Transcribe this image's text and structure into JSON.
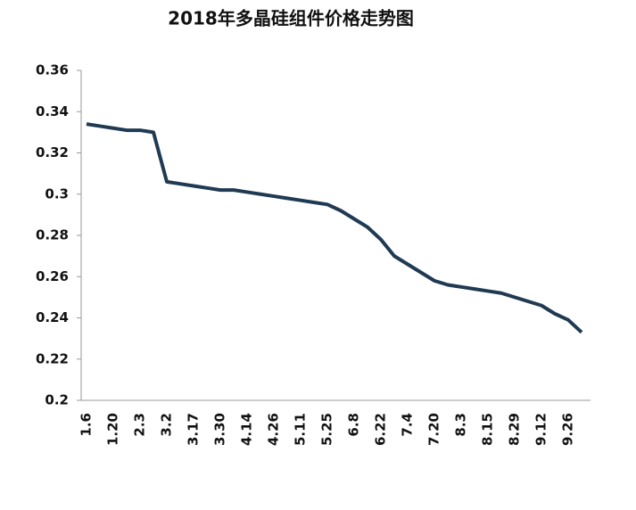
{
  "chart_data": {
    "type": "line",
    "title": "2018年多晶硅组件价格走势图",
    "categories": [
      "1.6",
      null,
      "1.20",
      null,
      "2.3",
      null,
      "3.2",
      null,
      "3.17",
      null,
      "3.30",
      null,
      "4.14",
      null,
      "4.26",
      null,
      "5.11",
      null,
      "5.25",
      null,
      "6.8",
      null,
      "6.22",
      null,
      "7.4",
      null,
      "7.20",
      null,
      "8.3",
      null,
      "8.15",
      null,
      "8.29",
      null,
      "9.12",
      null,
      "9.26",
      null
    ],
    "values": [
      0.334,
      0.333,
      0.332,
      0.331,
      0.331,
      0.33,
      0.306,
      0.305,
      0.304,
      0.303,
      0.302,
      0.302,
      0.301,
      0.3,
      0.299,
      0.298,
      0.297,
      0.296,
      0.295,
      0.292,
      0.288,
      0.284,
      0.278,
      0.27,
      0.266,
      0.262,
      0.258,
      0.256,
      0.255,
      0.254,
      0.253,
      0.252,
      0.25,
      0.248,
      0.246,
      0.242,
      0.239,
      0.233
    ],
    "color": "#1f3a52",
    "ylim": [
      0.2,
      0.36
    ],
    "yticks": [
      0.2,
      0.22,
      0.24,
      0.26,
      0.28,
      0.3,
      0.32,
      0.34,
      0.36
    ]
  }
}
